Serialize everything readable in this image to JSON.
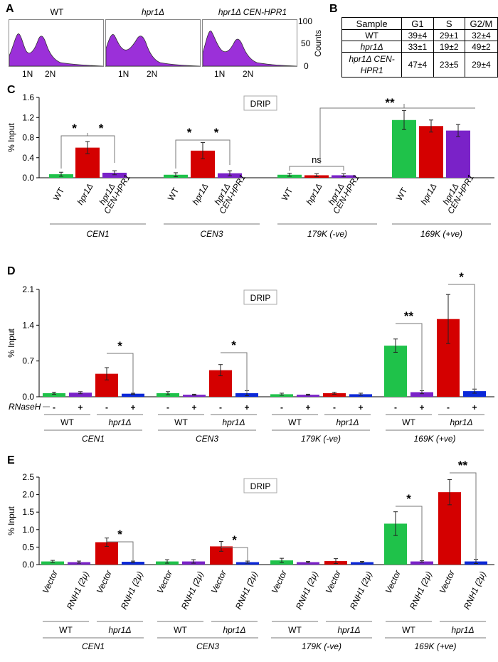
{
  "colors": {
    "wt": "#1fc24a",
    "hpr1": "#d40000",
    "comp": "#7a22c8",
    "rnaseh": "#0b28d8",
    "hist": "#9b30d9"
  },
  "panelA": {
    "label": "A",
    "plots": [
      {
        "title": "WT",
        "title_italic": false
      },
      {
        "title": "hpr1Δ",
        "title_italic": true
      },
      {
        "title": "hpr1Δ CEN-HPR1",
        "title_italic": true
      }
    ],
    "peak_labels": [
      "1N",
      "2N"
    ],
    "yticks": [
      "100",
      "50",
      "0"
    ],
    "ylabel": "Counts"
  },
  "panelB": {
    "label": "B",
    "headers": [
      "Sample",
      "G1",
      "S",
      "G2/M"
    ],
    "rows": [
      {
        "sample": "WT",
        "g1": "39±4",
        "s": "29±1",
        "g2m": "32±4"
      },
      {
        "sample": "hpr1Δ",
        "g1": "33±1",
        "s": "19±2",
        "g2m": "49±2"
      },
      {
        "sample": "hpr1Δ CEN-HPR1",
        "g1": "47±4",
        "s": "23±5",
        "g2m": "29±4"
      }
    ]
  },
  "chart_data": [
    {
      "type": "bar",
      "panel": "C",
      "title": "DRIP",
      "ylabel": "% Input",
      "ylim": [
        0,
        1.6
      ],
      "yticks": [
        0,
        0.4,
        0.8,
        1.2,
        1.6
      ],
      "ytick_labels": [
        "0.0",
        "0.4",
        "0.8",
        "1.2",
        "1.6"
      ],
      "categories": [
        "WT",
        "hpr1Δ",
        "hpr1Δ CEN-HPR1",
        "WT",
        "hpr1Δ",
        "hpr1Δ CEN-HPR1",
        "WT",
        "hpr1Δ",
        "hpr1Δ CEN-HPR1",
        "WT",
        "hpr1Δ",
        "hpr1Δ CEN-HPR1"
      ],
      "values": [
        0.07,
        0.6,
        0.1,
        0.06,
        0.54,
        0.09,
        0.06,
        0.05,
        0.05,
        1.15,
        1.03,
        0.94
      ],
      "errors": [
        0.04,
        0.12,
        0.04,
        0.04,
        0.16,
        0.05,
        0.03,
        0.03,
        0.03,
        0.19,
        0.12,
        0.12
      ],
      "bar_colors": [
        "wt",
        "hpr1",
        "comp",
        "wt",
        "hpr1",
        "comp",
        "wt",
        "hpr1",
        "comp",
        "wt",
        "hpr1",
        "comp"
      ],
      "groups": [
        "CEN1",
        "CEN3",
        "179K (-ve)",
        "169K (+ve)"
      ],
      "significance": [
        "*",
        "*",
        "*",
        "*",
        "ns",
        "**"
      ]
    },
    {
      "type": "bar",
      "panel": "D",
      "title": "DRIP",
      "ylabel": "% Input",
      "ylim": [
        0,
        2.1
      ],
      "yticks": [
        0,
        0.7,
        1.4,
        2.1
      ],
      "ytick_labels": [
        "0.0",
        "0.7",
        "1.4",
        "2.1"
      ],
      "treatment_label": "RNaseH",
      "treatment_signs": [
        "-",
        "+",
        "-",
        "+",
        "-",
        "+",
        "-",
        "+",
        "-",
        "+",
        "-",
        "+",
        "-",
        "+",
        "-",
        "+"
      ],
      "strains": [
        "WT",
        "hpr1Δ",
        "WT",
        "hpr1Δ",
        "WT",
        "hpr1Δ",
        "WT",
        "hpr1Δ"
      ],
      "values": [
        0.07,
        0.08,
        0.45,
        0.06,
        0.07,
        0.04,
        0.52,
        0.07,
        0.05,
        0.04,
        0.07,
        0.05,
        1.0,
        0.09,
        1.52,
        0.11
      ],
      "errors": [
        0.02,
        0.02,
        0.12,
        0.01,
        0.03,
        0.01,
        0.11,
        0.05,
        0.02,
        0.01,
        0.02,
        0.02,
        0.13,
        0.03,
        0.48,
        0.04
      ],
      "bar_colors": [
        "wt",
        "comp",
        "hpr1",
        "rnaseh",
        "wt",
        "comp",
        "hpr1",
        "rnaseh",
        "wt",
        "comp",
        "hpr1",
        "rnaseh",
        "wt",
        "comp",
        "hpr1",
        "rnaseh"
      ],
      "groups": [
        "CEN1",
        "CEN3",
        "179K (-ve)",
        "169K (+ve)"
      ],
      "significance": [
        "*",
        "*",
        "**",
        "*"
      ]
    },
    {
      "type": "bar",
      "panel": "E",
      "title": "DRIP",
      "ylabel": "% Input",
      "ylim": [
        0,
        2.5
      ],
      "yticks": [
        0,
        0.5,
        1.0,
        1.5,
        2.0,
        2.5
      ],
      "ytick_labels": [
        "0.0",
        "0.5",
        "1.0",
        "1.5",
        "2.0",
        "2.5"
      ],
      "categories": [
        "Vector",
        "RNH1 (2μ)",
        "Vector",
        "RNH1 (2μ)",
        "Vector",
        "RNH1 (2μ)",
        "Vector",
        "RNH1 (2μ)",
        "Vector",
        "RNH1 (2μ)",
        "Vector",
        "RNH1 (2μ)",
        "Vector",
        "RNH1 (2μ)",
        "Vector",
        "RNH1 (2μ)"
      ],
      "strains": [
        "WT",
        "hpr1Δ",
        "WT",
        "hpr1Δ",
        "WT",
        "hpr1Δ",
        "WT",
        "hpr1Δ"
      ],
      "values": [
        0.09,
        0.07,
        0.64,
        0.08,
        0.09,
        0.09,
        0.52,
        0.07,
        0.12,
        0.07,
        0.1,
        0.07,
        1.17,
        0.09,
        2.07,
        0.09
      ],
      "errors": [
        0.03,
        0.03,
        0.12,
        0.02,
        0.05,
        0.05,
        0.14,
        0.03,
        0.06,
        0.02,
        0.07,
        0.02,
        0.34,
        0.02,
        0.36,
        0.06
      ],
      "bar_colors": [
        "wt",
        "comp",
        "hpr1",
        "rnaseh",
        "wt",
        "comp",
        "hpr1",
        "rnaseh",
        "wt",
        "comp",
        "hpr1",
        "rnaseh",
        "wt",
        "comp",
        "hpr1",
        "rnaseh"
      ],
      "groups": [
        "CEN1",
        "CEN3",
        "179K (-ve)",
        "169K (+ve)"
      ],
      "significance": [
        "*",
        "*",
        "*",
        "**"
      ]
    }
  ]
}
